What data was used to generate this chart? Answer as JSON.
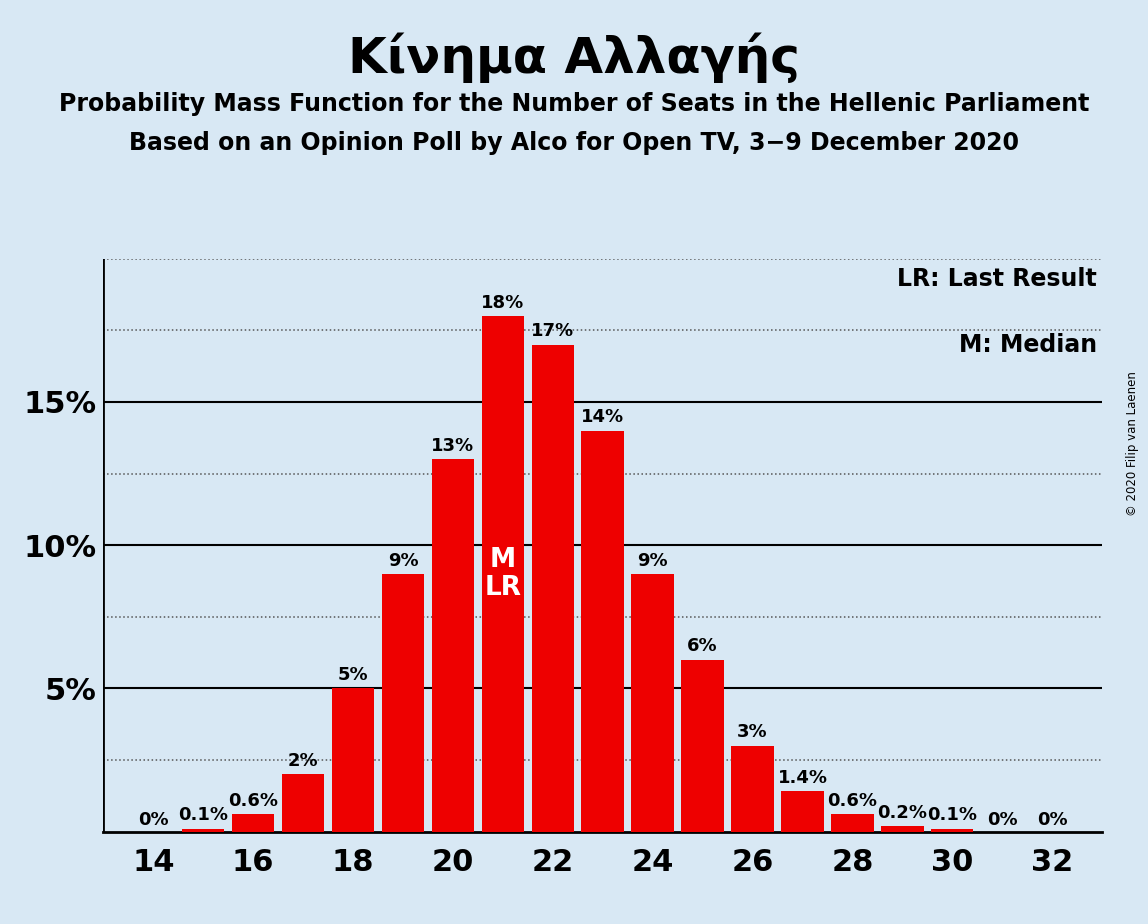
{
  "title": "Κίνημα Αλλαγής",
  "subtitle1": "Probability Mass Function for the Number of Seats in the Hellenic Parliament",
  "subtitle2": "Based on an Opinion Poll by Alco for Open TV, 3−9 December 2020",
  "copyright": "© 2020 Filip van Laenen",
  "legend_lr": "LR: Last Result",
  "legend_m": "M: Median",
  "seats": [
    14,
    15,
    16,
    17,
    18,
    19,
    20,
    21,
    22,
    23,
    24,
    25,
    26,
    27,
    28,
    29,
    30,
    31,
    32
  ],
  "probabilities": [
    0.0,
    0.001,
    0.006,
    0.02,
    0.05,
    0.09,
    0.13,
    0.18,
    0.17,
    0.14,
    0.09,
    0.06,
    0.03,
    0.014,
    0.006,
    0.002,
    0.001,
    0.0,
    0.0
  ],
  "bar_labels": [
    "0%",
    "0.1%",
    "0.6%",
    "2%",
    "5%",
    "9%",
    "13%",
    "18%",
    "17%",
    "14%",
    "9%",
    "6%",
    "3%",
    "1.4%",
    "0.6%",
    "0.2%",
    "0.1%",
    "0%",
    "0%"
  ],
  "bar_color": "#ee0000",
  "bg_color": "#d8e8f4",
  "median_seat": 21,
  "lr_seat": 21,
  "ylim": [
    0,
    0.2
  ],
  "xlim": [
    13.0,
    33.0
  ],
  "xticks": [
    14,
    16,
    18,
    20,
    22,
    24,
    26,
    28,
    30,
    32
  ],
  "title_fontsize": 36,
  "subtitle_fontsize": 17,
  "tick_fontsize": 22,
  "label_fontsize": 13,
  "legend_fontsize": 17,
  "ytick_fontsize": 22
}
